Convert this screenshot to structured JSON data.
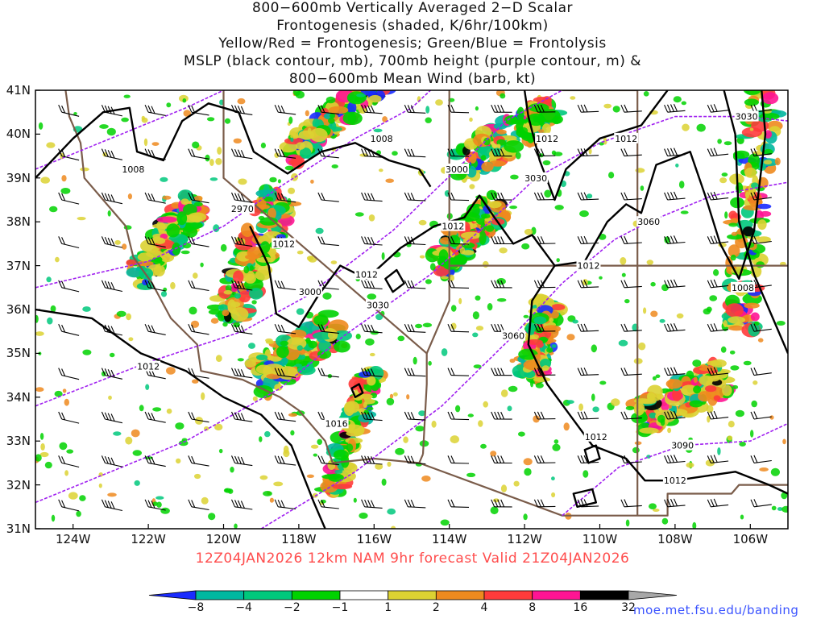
{
  "title": {
    "line1": "800−600mb Vertically Averaged 2−D Scalar",
    "line2": "Frontogenesis (shaded, K/6hr/100km)",
    "line3": "Yellow/Red = Frontogenesis;  Green/Blue = Frontolysis",
    "line4": "MSLP (black contour, mb), 700mb height (purple contour, m) &",
    "line5": "800−600mb Mean Wind (barb, kt)"
  },
  "footer": "12Z04JAN2026 12km NAM 9hr forecast Valid 21Z04JAN2026",
  "credit": "moe.met.fsu.edu/banding",
  "colors": {
    "background": "#ffffff",
    "mslp_contour": "#000000",
    "height_contour": "#a020f0",
    "borders": "#7a5c4a",
    "footer_text": "#ff4d4d",
    "credit_text": "#3a53ff"
  },
  "map": {
    "projection": "latlon",
    "lat_range": [
      31,
      41
    ],
    "lon_range": [
      -125,
      -105
    ],
    "lat_labels": [
      "41N",
      "40N",
      "39N",
      "38N",
      "37N",
      "36N",
      "35N",
      "34N",
      "33N",
      "32N",
      "31N"
    ],
    "lon_labels": [
      "124W",
      "122W",
      "120W",
      "118W",
      "116W",
      "114W",
      "112W",
      "110W",
      "108W",
      "106W"
    ],
    "mslp_labels": [
      {
        "text": "1008",
        "lon": -122.4,
        "lat": 39.2
      },
      {
        "text": "1008",
        "lon": -115.8,
        "lat": 39.9
      },
      {
        "text": "1012",
        "lon": -111.4,
        "lat": 39.9
      },
      {
        "text": "1012",
        "lon": -109.3,
        "lat": 39.9
      },
      {
        "text": "1012",
        "lon": -118.4,
        "lat": 37.5
      },
      {
        "text": "1012",
        "lon": -113.9,
        "lat": 37.9
      },
      {
        "text": "1012",
        "lon": -116.2,
        "lat": 36.8
      },
      {
        "text": "1012",
        "lon": -110.3,
        "lat": 37.0
      },
      {
        "text": "1012",
        "lon": -122.0,
        "lat": 34.7
      },
      {
        "text": "1008",
        "lon": -106.2,
        "lat": 36.5
      },
      {
        "text": "1016",
        "lon": -117.0,
        "lat": 33.4
      },
      {
        "text": "1012",
        "lon": -110.1,
        "lat": 33.1
      },
      {
        "text": "1012",
        "lon": -108.0,
        "lat": 32.1
      }
    ],
    "height_labels": [
      {
        "text": "3030",
        "lon": -106.1,
        "lat": 40.4
      },
      {
        "text": "3000",
        "lon": -113.8,
        "lat": 39.2
      },
      {
        "text": "3030",
        "lon": -111.7,
        "lat": 39.0
      },
      {
        "text": "2970",
        "lon": -119.5,
        "lat": 38.3
      },
      {
        "text": "3060",
        "lon": -108.7,
        "lat": 38.0
      },
      {
        "text": "3000",
        "lon": -117.7,
        "lat": 36.4
      },
      {
        "text": "3030",
        "lon": -115.9,
        "lat": 36.1
      },
      {
        "text": "3060",
        "lon": -112.3,
        "lat": 35.4
      },
      {
        "text": "3090",
        "lon": -107.8,
        "lat": 32.9
      }
    ]
  },
  "colorbar": {
    "levels": [
      "−8",
      "−4",
      "−2",
      "−1",
      "1",
      "2",
      "4",
      "8",
      "16",
      "32"
    ],
    "colors": [
      "#1a2bff",
      "#00b8a0",
      "#00c87c",
      "#00d200",
      "#ffffff",
      "#dcd232",
      "#ee8a1e",
      "#ff3b3b",
      "#ff1493",
      "#000000",
      "#a8a8a8"
    ]
  }
}
